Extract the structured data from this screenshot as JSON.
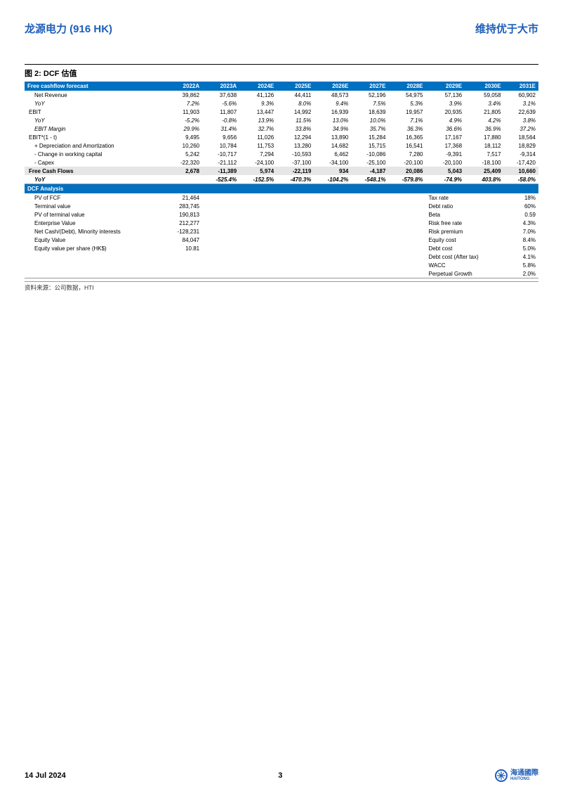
{
  "header": {
    "company": "龙源电力 (916 HK)",
    "rating": "维持优于大市"
  },
  "figure": {
    "title": "图 2: DCF 估值",
    "source": "资料来源：公司数据，HTI"
  },
  "fcf": {
    "section": "Free cashflow forecast",
    "cols": [
      "2022A",
      "2023A",
      "2024E",
      "2025E",
      "2026E",
      "2027E",
      "2028E",
      "2029E",
      "2030E",
      "2031E"
    ],
    "rows": [
      {
        "label": "Net Revenue",
        "indent": true,
        "vals": [
          "39,862",
          "37,638",
          "41,126",
          "44,411",
          "48,573",
          "52,196",
          "54,975",
          "57,136",
          "59,058",
          "60,902"
        ]
      },
      {
        "label": "YoY",
        "indent": true,
        "italic": true,
        "vals": [
          "7.2%",
          "-5.6%",
          "9.3%",
          "8.0%",
          "9.4%",
          "7.5%",
          "5.3%",
          "3.9%",
          "3.4%",
          "3.1%"
        ]
      },
      {
        "label": "EBIT",
        "indent": false,
        "vals": [
          "11,903",
          "11,807",
          "13,447",
          "14,992",
          "16,939",
          "18,639",
          "19,957",
          "20,935",
          "21,805",
          "22,639"
        ]
      },
      {
        "label": "YoY",
        "indent": true,
        "italic": true,
        "vals": [
          "-5.2%",
          "-0.8%",
          "13.9%",
          "11.5%",
          "13.0%",
          "10.0%",
          "7.1%",
          "4.9%",
          "4.2%",
          "3.8%"
        ]
      },
      {
        "label": "EBIT Margin",
        "indent": true,
        "italic": true,
        "vals": [
          "29.9%",
          "31.4%",
          "32.7%",
          "33.8%",
          "34.9%",
          "35.7%",
          "36.3%",
          "36.6%",
          "36.9%",
          "37.2%"
        ]
      },
      {
        "label": "EBIT*(1 - t)",
        "indent": false,
        "vals": [
          "9,495",
          "9,656",
          "11,026",
          "12,294",
          "13,890",
          "15,284",
          "16,365",
          "17,167",
          "17,880",
          "18,564"
        ]
      },
      {
        "label": "+ Depreciation and Amortization",
        "indent": true,
        "vals": [
          "10,260",
          "10,784",
          "11,753",
          "13,280",
          "14,682",
          "15,715",
          "16,541",
          "17,368",
          "18,112",
          "18,829"
        ]
      },
      {
        "label": "- Change in working capital",
        "indent": true,
        "vals": [
          "5,242",
          "-10,717",
          "7,294",
          "-10,593",
          "6,462",
          "-10,086",
          "7,280",
          "-9,391",
          "7,517",
          "-9,314"
        ]
      },
      {
        "label": "- Capex",
        "indent": true,
        "vals": [
          "-22,320",
          "-21,112",
          "-24,100",
          "-37,100",
          "-34,100",
          "-25,100",
          "-20,100",
          "-20,100",
          "-18,100",
          "-17,420"
        ]
      },
      {
        "label": "Free Cash Flows",
        "indent": false,
        "shaded": true,
        "bold": true,
        "vals": [
          "2,678",
          "-11,389",
          "5,974",
          "-22,119",
          "934",
          "-4,187",
          "20,086",
          "5,043",
          "25,409",
          "10,660"
        ]
      },
      {
        "label": "YoY",
        "indent": true,
        "bold": true,
        "italic": true,
        "border": true,
        "vals": [
          "",
          "-525.4%",
          "-152.5%",
          "-470.3%",
          "-104.2%",
          "-548.1%",
          "-579.8%",
          "-74.9%",
          "403.8%",
          "-58.0%"
        ]
      }
    ]
  },
  "dcf": {
    "section": "DCF Analysis",
    "left": [
      {
        "label": "PV of FCF",
        "val": "21,464"
      },
      {
        "label": "Terminal value",
        "val": "283,745"
      },
      {
        "label": "PV of terminal value",
        "val": "190,813"
      },
      {
        "label": "Enterprise Value",
        "val": "212,277"
      },
      {
        "label": "Net Cash/(Debt), Minority interests",
        "val": "-128,231"
      },
      {
        "label": "Equity Value",
        "val": "84,047"
      },
      {
        "label": "Equity value per share (HK$)",
        "val": "10.81"
      }
    ],
    "right": [
      {
        "label": "Tax rate",
        "val": "18%"
      },
      {
        "label": "Debt ratio",
        "val": "60%"
      },
      {
        "label": "Beta",
        "val": "0.59"
      },
      {
        "label": "Risk free rate",
        "val": "4.3%"
      },
      {
        "label": "Risk premium",
        "val": "7.0%"
      },
      {
        "label": "Equity cost",
        "val": "8.4%"
      },
      {
        "label": "Debt cost",
        "val": "5.0%"
      },
      {
        "label": "Debt cost (After tax)",
        "val": "4.1%"
      },
      {
        "label": "WACC",
        "val": "5.8%"
      },
      {
        "label": "Perpetual Growth",
        "val": "2.0%"
      }
    ]
  },
  "footer": {
    "date": "14 Jul 2024",
    "page": "3",
    "brand_cn": "海通國際",
    "brand_en": "HAITONG"
  },
  "style": {
    "header_bg": "#0070c0",
    "shaded_bg": "#e6e6e6",
    "brand_color": "#1f5eb8"
  }
}
